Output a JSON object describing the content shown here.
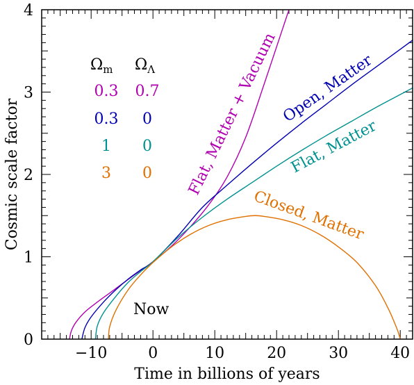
{
  "chart_data": {
    "type": "line",
    "title": "",
    "xlabel": "Time in billions of years",
    "ylabel": "Cosmic scale factor",
    "xlim": [
      -18,
      42
    ],
    "ylim": [
      0,
      4
    ],
    "x_ticks": [
      -10,
      0,
      10,
      20,
      30,
      40
    ],
    "x_tick_labels": [
      "−10",
      "0",
      "10",
      "20",
      "30",
      "40"
    ],
    "y_ticks": [
      0,
      1,
      2,
      3,
      4
    ],
    "y_tick_labels": [
      "0",
      "1",
      "2",
      "3",
      "4"
    ],
    "grid": false,
    "series": [
      {
        "name": "Flat, Matter + Vacuum",
        "color": "#b000b0",
        "omega_m": "0.3",
        "omega_lambda": "0.7",
        "x": [
          -13.5,
          -13.2,
          -12.5,
          -11.0,
          -9.0,
          -7.0,
          -5.0,
          -3.0,
          0.0,
          3.0,
          6.0,
          9.0,
          12.0,
          15.0,
          18.0,
          20.0,
          22.0
        ],
        "y": [
          0.0,
          0.1,
          0.2,
          0.33,
          0.45,
          0.56,
          0.67,
          0.78,
          0.94,
          1.13,
          1.36,
          1.63,
          1.97,
          2.45,
          3.1,
          3.55,
          4.0
        ]
      },
      {
        "name": "Open, Matter",
        "color": "#0000b0",
        "omega_m": "0.3",
        "omega_lambda": "0",
        "x": [
          -11.5,
          -11.0,
          -10.0,
          -8.0,
          -6.0,
          -4.0,
          -2.0,
          0.0,
          4.0,
          8.0,
          12.0,
          16.0,
          20.0,
          24.0,
          28.0,
          32.0,
          36.0,
          40.0,
          42.0
        ],
        "y": [
          0.0,
          0.14,
          0.27,
          0.45,
          0.6,
          0.73,
          0.84,
          0.94,
          1.25,
          1.6,
          1.87,
          2.13,
          2.38,
          2.62,
          2.85,
          3.08,
          3.3,
          3.52,
          3.63
        ]
      },
      {
        "name": "Flat, Matter",
        "color": "#009090",
        "omega_m": "1",
        "omega_lambda": "0",
        "x": [
          -9.3,
          -9.0,
          -8.0,
          -6.0,
          -4.0,
          -2.0,
          0.0,
          4.0,
          8.0,
          12.0,
          16.0,
          20.0,
          24.0,
          28.0,
          32.0,
          36.0,
          40.0,
          42.0
        ],
        "y": [
          0.0,
          0.16,
          0.32,
          0.52,
          0.69,
          0.82,
          0.94,
          1.23,
          1.48,
          1.7,
          1.9,
          2.1,
          2.29,
          2.47,
          2.64,
          2.81,
          2.97,
          3.05
        ]
      },
      {
        "name": "Closed, Matter",
        "color": "#e07000",
        "omega_m": "3",
        "omega_lambda": "0",
        "x": [
          -7.2,
          -7.0,
          -6.0,
          -4.0,
          -2.0,
          0.0,
          3.0,
          6.0,
          9.0,
          12.0,
          15.0,
          16.5,
          18.0,
          21.0,
          24.0,
          27.0,
          30.0,
          33.0,
          36.0,
          38.0,
          39.5,
          40.0
        ],
        "y": [
          0.0,
          0.15,
          0.35,
          0.6,
          0.78,
          0.93,
          1.12,
          1.27,
          1.38,
          1.45,
          1.49,
          1.5,
          1.49,
          1.45,
          1.38,
          1.27,
          1.12,
          0.93,
          0.65,
          0.38,
          0.12,
          0.0
        ]
      }
    ],
    "legend": {
      "header_m": "Ω",
      "header_m_sub": "m",
      "header_l": "Ω",
      "header_l_sub": "Λ"
    },
    "annotations": {
      "now": "Now"
    }
  }
}
